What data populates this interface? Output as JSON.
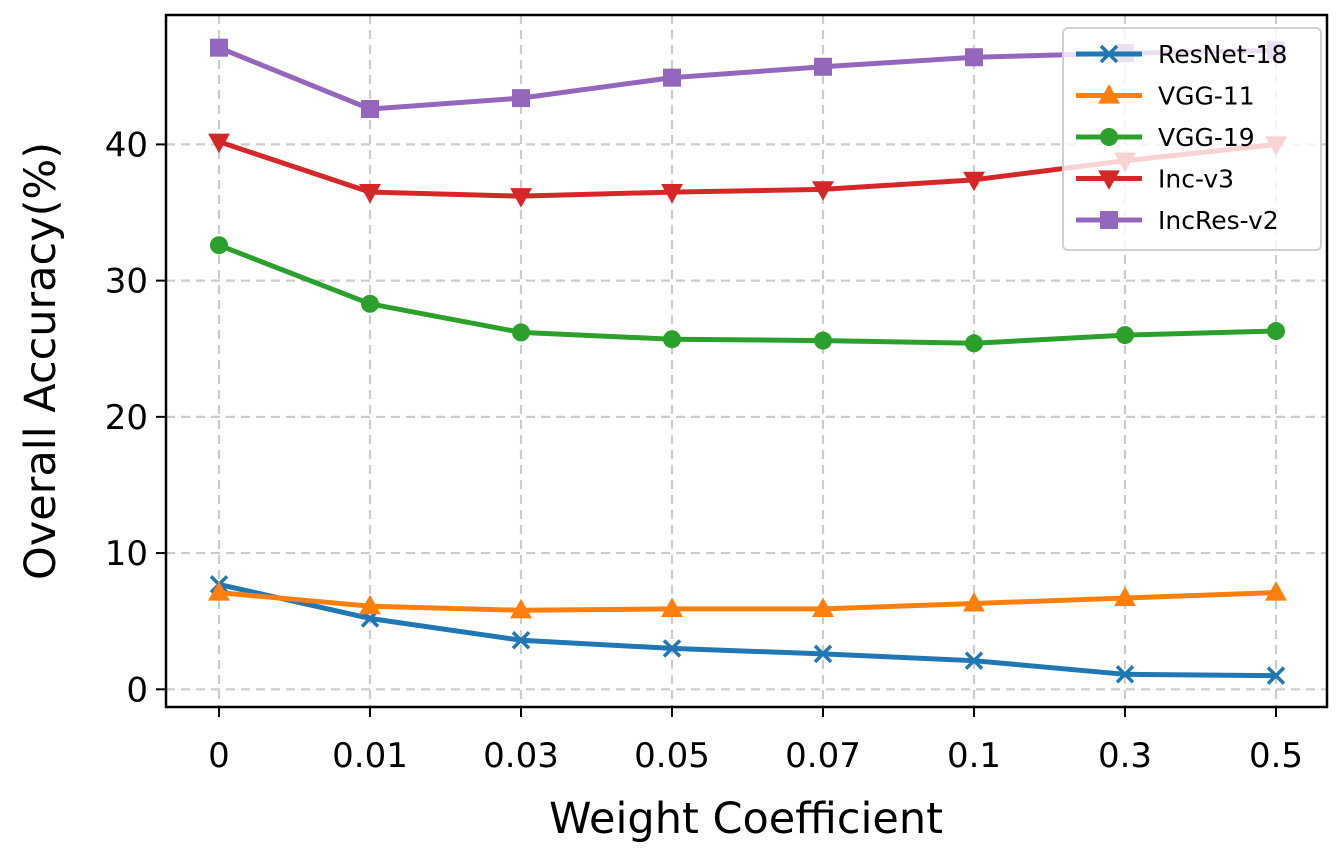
{
  "chart_data": {
    "type": "line",
    "xlabel": "Weight Coefficient",
    "ylabel": "Overall Accuracy(%)",
    "categories": [
      "0",
      "0.01",
      "0.03",
      "0.05",
      "0.07",
      "0.1",
      "0.3",
      "0.5"
    ],
    "ylim": [
      -1.3,
      49.5
    ],
    "yticks": [
      0,
      10,
      20,
      30,
      40
    ],
    "grid": true,
    "legend_position": "top-right",
    "series": [
      {
        "name": "ResNet-18",
        "color": "#1f77b4",
        "marker": "x",
        "values": [
          7.7,
          5.2,
          3.6,
          3.0,
          2.6,
          2.1,
          1.1,
          1.0
        ]
      },
      {
        "name": "VGG-11",
        "color": "#ff7f0e",
        "marker": "triangle-up",
        "values": [
          7.1,
          6.1,
          5.8,
          5.9,
          5.9,
          6.3,
          6.7,
          7.1
        ]
      },
      {
        "name": "VGG-19",
        "color": "#2ca02c",
        "marker": "circle",
        "values": [
          32.6,
          28.3,
          26.2,
          25.7,
          25.6,
          25.4,
          26.0,
          26.3
        ]
      },
      {
        "name": "Inc-v3",
        "color": "#d62728",
        "marker": "triangle-down",
        "values": [
          40.2,
          36.5,
          36.2,
          36.5,
          36.7,
          37.4,
          38.8,
          40.0
        ]
      },
      {
        "name": "IncRes-v2",
        "color": "#9467bd",
        "marker": "square",
        "values": [
          47.1,
          42.6,
          43.4,
          44.9,
          45.7,
          46.4,
          46.7,
          46.9
        ]
      }
    ]
  }
}
